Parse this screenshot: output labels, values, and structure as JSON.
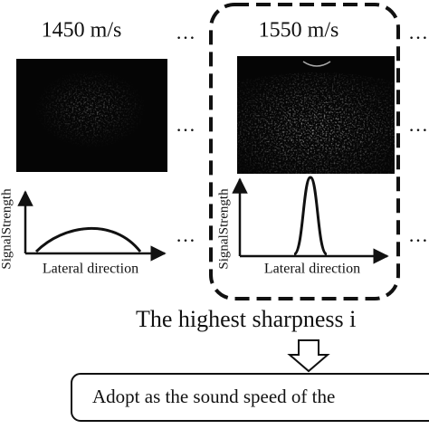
{
  "panels": [
    {
      "speed": "1450 m/s",
      "y_label": "SignalStrength",
      "x_label": "Lateral direction"
    },
    {
      "speed": "1550 m/s",
      "y_label": "SignalStrength",
      "x_label": "Lateral direction"
    }
  ],
  "ellipsis": "…",
  "conclusion": "The highest sharpness i",
  "action": "Adopt as the sound speed of the"
}
